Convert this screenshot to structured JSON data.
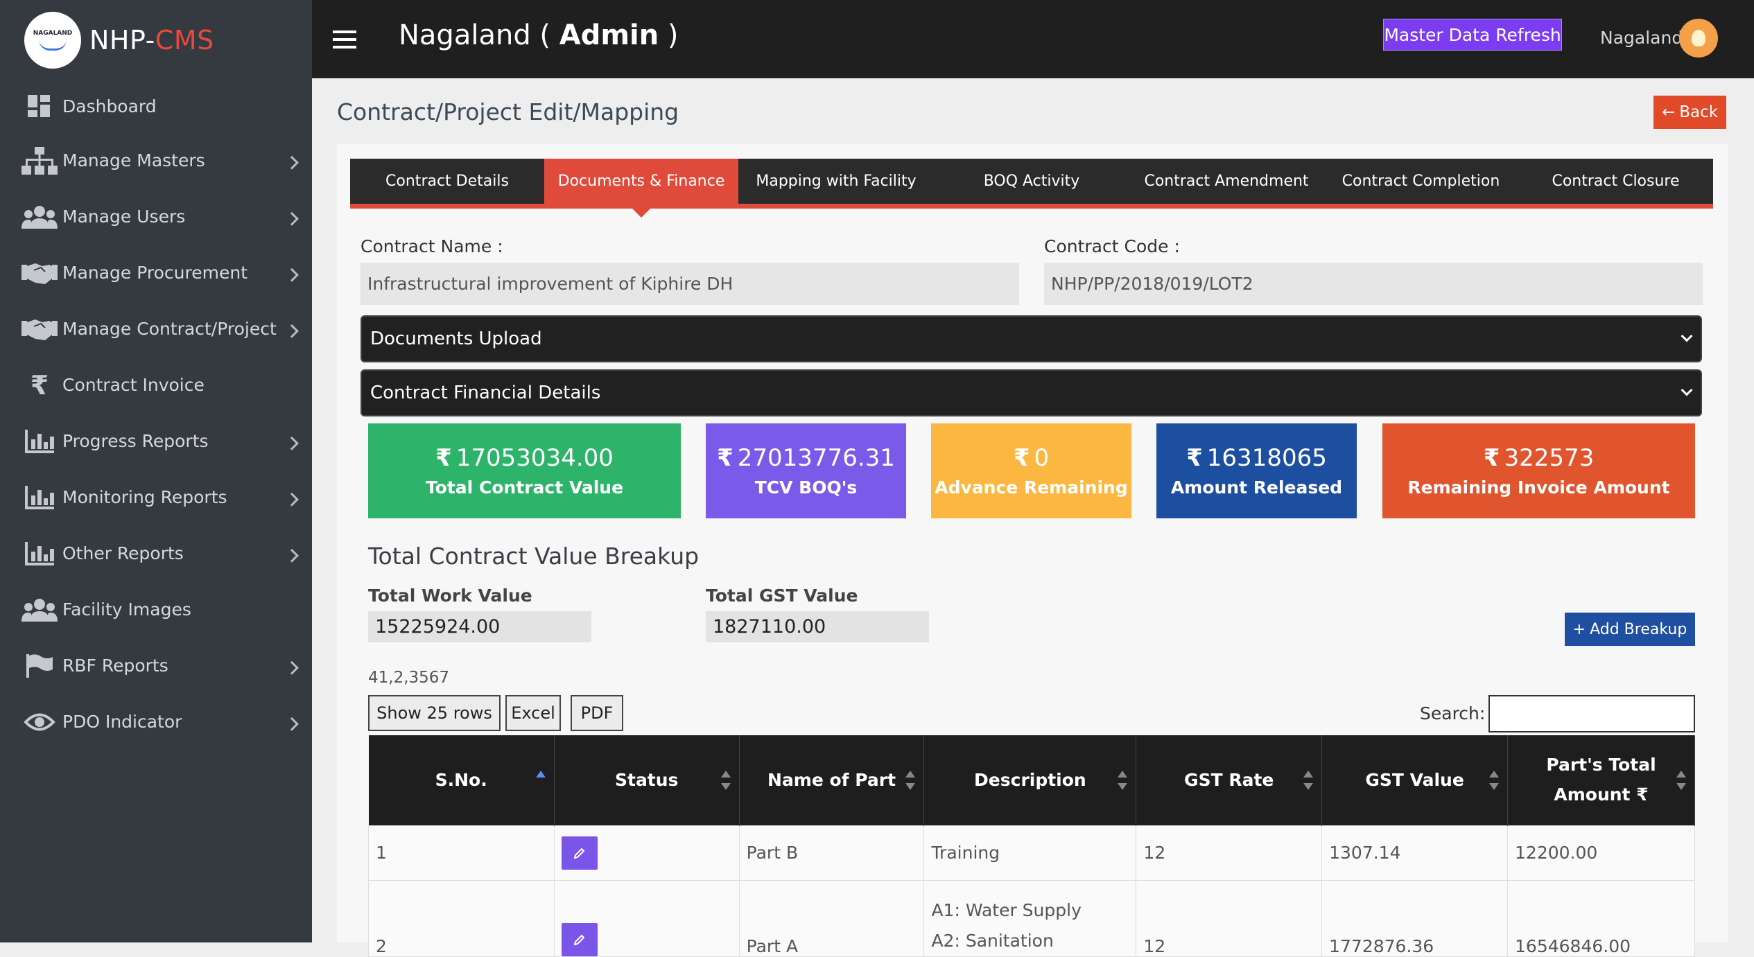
{
  "brand": {
    "name_prefix": "NHP-",
    "name_suffix": "CMS",
    "logo_text": "NAGALAND"
  },
  "sidebar": {
    "items": [
      {
        "label": "Dashboard",
        "icon": "dashboard-icon"
      },
      {
        "label": "Manage Masters",
        "icon": "sitemap-icon"
      },
      {
        "label": "Manage Users",
        "icon": "users-icon"
      },
      {
        "label": "Manage Procurement",
        "icon": "handshake-icon"
      },
      {
        "label": "Manage Contract/Project",
        "icon": "handshake-icon"
      },
      {
        "label": "Contract Invoice",
        "icon": "rupee-icon"
      },
      {
        "label": "Progress Reports",
        "icon": "bar-chart-icon"
      },
      {
        "label": "Monitoring Reports",
        "icon": "bar-chart-icon"
      },
      {
        "label": "Other Reports",
        "icon": "bar-chart-icon"
      },
      {
        "label": "Facility Images",
        "icon": "users-icon"
      },
      {
        "label": "RBF Reports",
        "icon": "flag-icon"
      },
      {
        "label": "PDO Indicator",
        "icon": "eye-icon"
      }
    ]
  },
  "topbar": {
    "title_state": "Nagaland ( ",
    "title_role": "Admin",
    "title_close": " )",
    "master_refresh": "Master Data Refresh",
    "user_name": "Nagaland"
  },
  "page": {
    "title": "Contract/Project Edit/Mapping",
    "back_label": "Back"
  },
  "tabs": [
    {
      "label": "Contract Details",
      "active": false
    },
    {
      "label": "Documents & Finance",
      "active": true
    },
    {
      "label": "Mapping with Facility",
      "active": false
    },
    {
      "label": "BOQ Activity",
      "active": false
    },
    {
      "label": "Contract Amendment",
      "active": false
    },
    {
      "label": "Contract Completion",
      "active": false
    },
    {
      "label": "Contract Closure",
      "active": false
    }
  ],
  "contract": {
    "name_label": "Contract Name :",
    "name_value": "Infrastructural improvement of Kiphire DH",
    "code_label": "Contract Code :",
    "code_value": "NHP/PP/2018/019/LOT2"
  },
  "accordions": {
    "documents": "Documents Upload",
    "financial": "Contract Financial Details"
  },
  "stats": [
    {
      "value": "17053034.00",
      "caption": "Total Contract Value",
      "color": "#2db46a"
    },
    {
      "value": "27013776.31",
      "caption": "TCV BOQ's",
      "color": "#7a5ae8"
    },
    {
      "value": "0",
      "caption": "Advance Remaining",
      "color": "#fbb741"
    },
    {
      "value": "16318065",
      "caption": "Amount Released",
      "color": "#1d4fa1"
    },
    {
      "value": "322573",
      "caption": "Remaining Invoice Amount",
      "color": "#e0542e"
    }
  ],
  "breakup": {
    "heading": "Total Contract Value Breakup",
    "work_label": "Total Work Value",
    "work_value": "15225924.00",
    "gst_label": "Total GST Value",
    "gst_value": "1827110.00",
    "add_label": "Add Breakup",
    "misc_text": "41,2,3567",
    "show_rows": "Show 25 rows",
    "excel": "Excel",
    "pdf": "PDF",
    "search_label": "Search:",
    "search_value": ""
  },
  "table": {
    "headers": [
      "S.No.",
      "Status",
      "Name of Part",
      "Description",
      "GST Rate",
      "GST Value",
      "Part's Total",
      "Amount ₹"
    ],
    "rows": [
      {
        "sno": "1",
        "part": "Part B",
        "desc1": "Training",
        "desc2": "",
        "rate": "12",
        "gst": "1307.14",
        "total": "12200.00"
      },
      {
        "sno": "2",
        "part": "Part A",
        "desc1": "A1: Water Supply",
        "desc2": "A2: Sanitation",
        "rate": "12",
        "gst": "1772876.36",
        "total": "16546846.00"
      }
    ]
  },
  "colors": {
    "accent": "#e04a3a",
    "sidebar": "#343a40",
    "topbar": "#1f1f1f",
    "purple": "#7b3cf2"
  }
}
